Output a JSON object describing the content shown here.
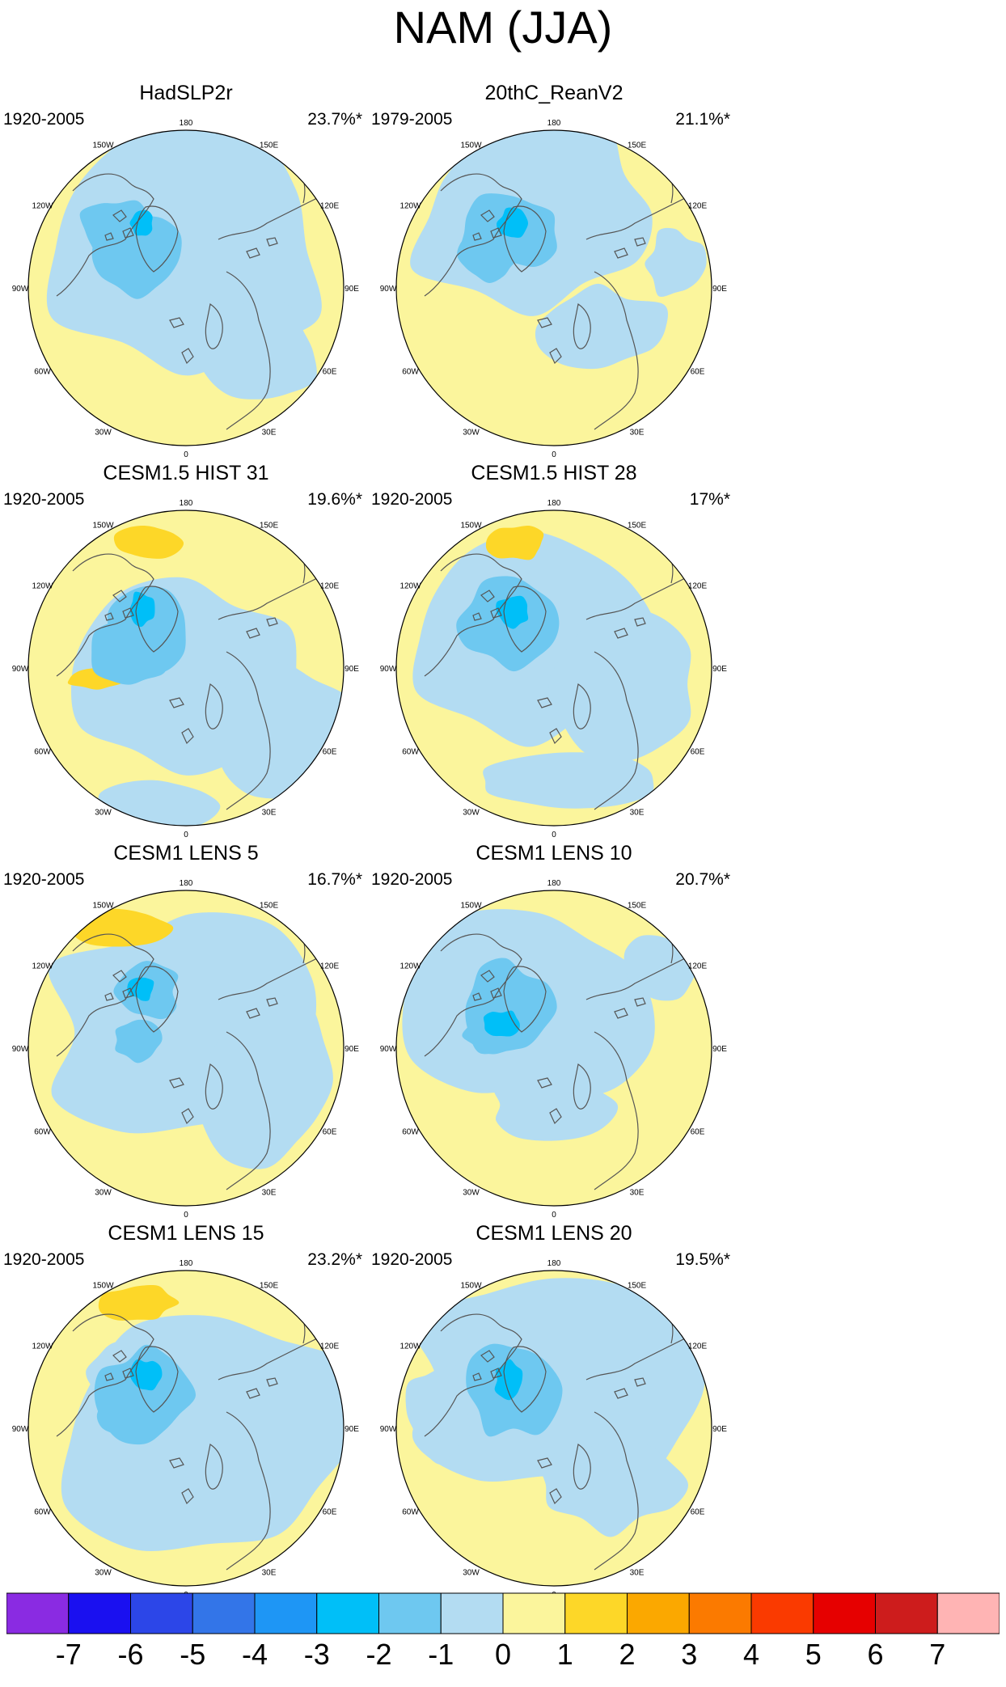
{
  "title": "NAM (JJA)",
  "panels": [
    {
      "title": "HadSLP2r",
      "period": "1920-2005",
      "variance": "23.7%*",
      "variant": 0
    },
    {
      "title": "20thC_ReanV2",
      "period": "1979-2005",
      "variance": "21.1%*",
      "variant": 1
    },
    {
      "title": "CESM1.5 HIST 31",
      "period": "1920-2005",
      "variance": "19.6%*",
      "variant": 2
    },
    {
      "title": "CESM1.5 HIST 28",
      "period": "1920-2005",
      "variance": "17%*",
      "variant": 3
    },
    {
      "title": "CESM1 LENS 5",
      "period": "1920-2005",
      "variance": "16.7%*",
      "variant": 4
    },
    {
      "title": "CESM1 LENS 10",
      "period": "1920-2005",
      "variance": "20.7%*",
      "variant": 5
    },
    {
      "title": "CESM1 LENS 15",
      "period": "1920-2005",
      "variance": "23.2%*",
      "variant": 6
    },
    {
      "title": "CESM1 LENS 20",
      "period": "1920-2005",
      "variance": "19.5%*",
      "variant": 7
    }
  ],
  "longitude_labels": [
    "180",
    "150E",
    "120E",
    "90E",
    "60E",
    "30E",
    "0",
    "30W",
    "60W",
    "90W",
    "120W",
    "150W"
  ],
  "colorbar": {
    "labels": [
      "-7",
      "-6",
      "-5",
      "-4",
      "-3",
      "-2",
      "-1",
      "0",
      "1",
      "2",
      "3",
      "4",
      "5",
      "6",
      "7"
    ],
    "colors": [
      "#8a2be2",
      "#1a10f0",
      "#2c46e8",
      "#3375e8",
      "#1e96f5",
      "#00bff8",
      "#6ec8f0",
      "#b3dcf2",
      "#fbf59c",
      "#fdd728",
      "#fba800",
      "#fb7a00",
      "#fa3a00",
      "#e60000",
      "#cd1c1c",
      "#ffb4b4"
    ]
  },
  "map_colors": {
    "positive_1": "#fbf59c",
    "positive_2": "#fdd728",
    "negative_1": "#b3dcf2",
    "negative_2": "#6ec8f0",
    "negative_3": "#00bff8",
    "coast": "#555555"
  }
}
